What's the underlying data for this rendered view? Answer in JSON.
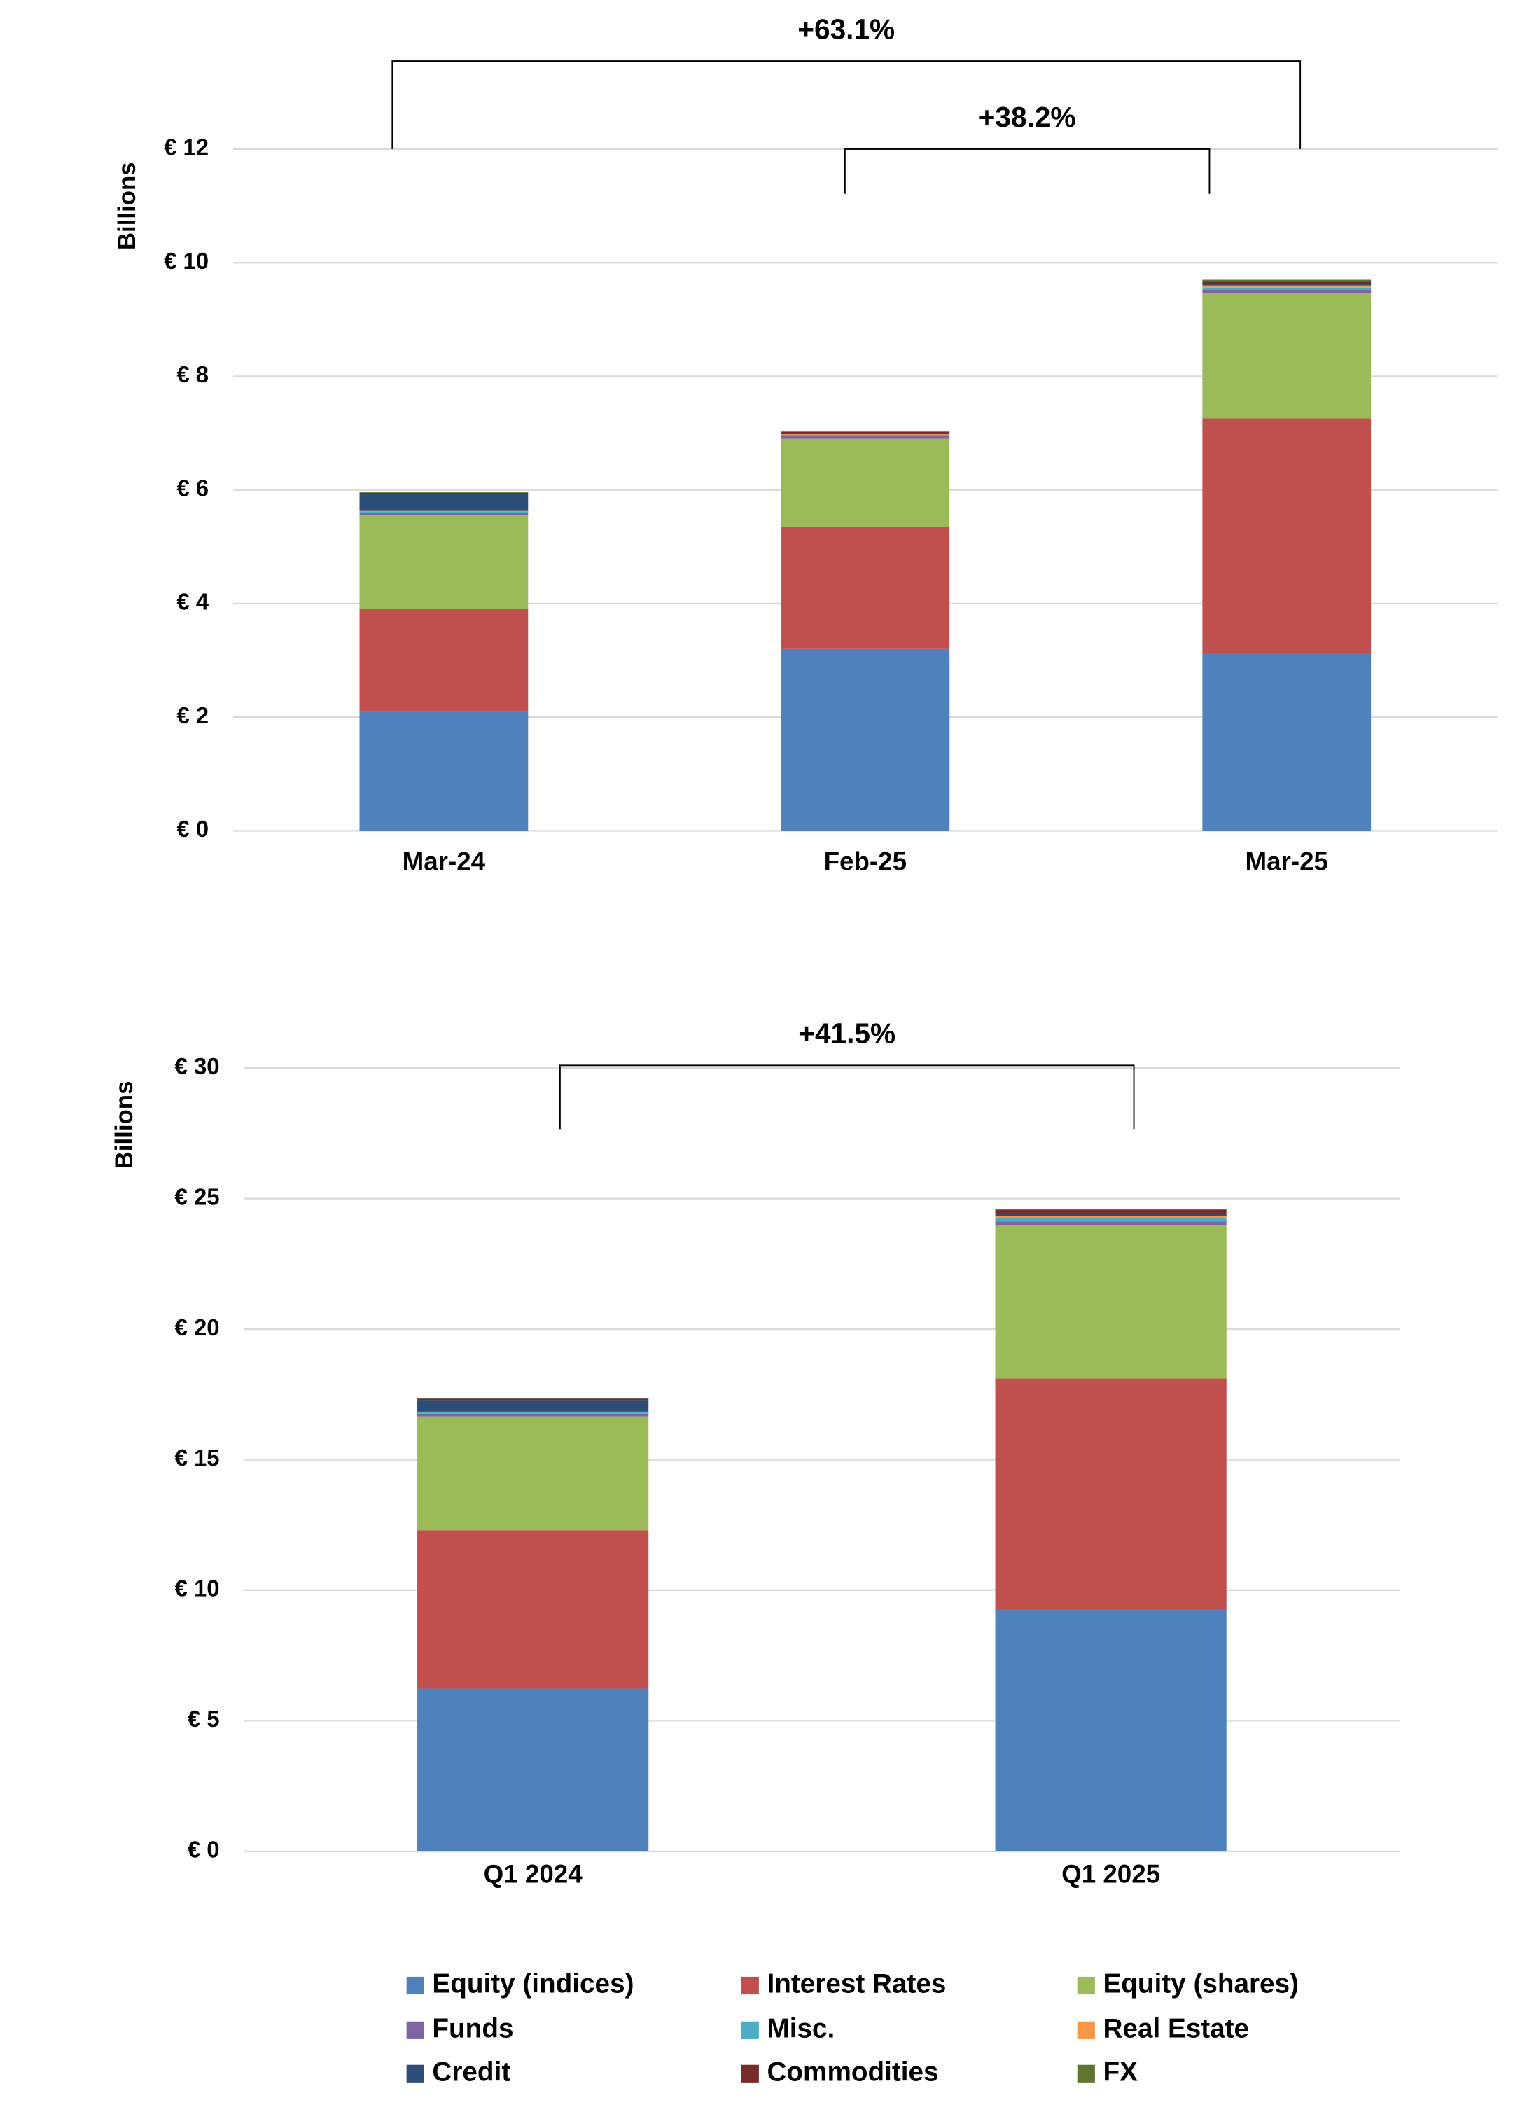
{
  "chart_data": [
    {
      "type": "stacked_bar",
      "y_label": "Billions",
      "categories": [
        "Mar-24",
        "Feb-25",
        "Mar-25"
      ],
      "ylim": [
        0,
        12
      ],
      "yticks": [
        {
          "value": 0,
          "label": "€ 0"
        },
        {
          "value": 2,
          "label": "€ 2"
        },
        {
          "value": 4,
          "label": "€ 4"
        },
        {
          "value": 6,
          "label": "€ 6"
        },
        {
          "value": 8,
          "label": "€ 8"
        },
        {
          "value": 10,
          "label": "€ 10"
        },
        {
          "value": 12,
          "label": "€ 12"
        }
      ],
      "grid": true,
      "annotations": [
        {
          "text": "+63.1%",
          "from": "Mar-24",
          "to": "Mar-25"
        },
        {
          "text": "+38.2%",
          "from": "Feb-25",
          "to": "Mar-25"
        }
      ],
      "series": [
        {
          "name": "Equity (indices)",
          "color": "#4f81bd",
          "values": [
            2.1,
            3.2,
            3.13
          ]
        },
        {
          "name": "Interest Rates",
          "color": "#c0504d",
          "values": [
            1.8,
            2.15,
            4.13
          ]
        },
        {
          "name": "Equity (shares)",
          "color": "#9bbb59",
          "values": [
            1.66,
            1.55,
            2.21
          ]
        },
        {
          "name": "Funds",
          "color": "#8064a2",
          "values": [
            0.04,
            0.05,
            0.06
          ]
        },
        {
          "name": "Misc.",
          "color": "#4bacc6",
          "values": [
            0.02,
            0.02,
            0.03
          ]
        },
        {
          "name": "Real Estate",
          "color": "#f79646",
          "values": [
            0.01,
            0.01,
            0.04
          ]
        },
        {
          "name": "Credit",
          "color": "#2c4d75",
          "values": [
            0.3,
            0.02,
            0.03
          ]
        },
        {
          "name": "Commodities",
          "color": "#772c2a",
          "values": [
            0.02,
            0.02,
            0.05
          ]
        },
        {
          "name": "FX",
          "color": "#5f7530",
          "values": [
            0.01,
            0.01,
            0.02
          ]
        }
      ]
    },
    {
      "type": "stacked_bar",
      "y_label": "Billions",
      "categories": [
        "Q1 2024",
        "Q1 2025"
      ],
      "ylim": [
        0,
        30
      ],
      "yticks": [
        {
          "value": 0,
          "label": "€ 0"
        },
        {
          "value": 5,
          "label": "€ 5"
        },
        {
          "value": 10,
          "label": "€ 10"
        },
        {
          "value": 15,
          "label": "€ 15"
        },
        {
          "value": 20,
          "label": "€ 20"
        },
        {
          "value": 25,
          "label": "€ 25"
        },
        {
          "value": 30,
          "label": "€ 30"
        }
      ],
      "grid": true,
      "annotations": [
        {
          "text": "+41.5%",
          "from": "Q1 2024",
          "to": "Q1 2025"
        }
      ],
      "series": [
        {
          "name": "Equity (indices)",
          "color": "#4f81bd",
          "values": [
            6.23,
            9.29
          ]
        },
        {
          "name": "Interest Rates",
          "color": "#c0504d",
          "values": [
            6.07,
            8.82
          ]
        },
        {
          "name": "Equity (shares)",
          "color": "#9bbb59",
          "values": [
            4.36,
            5.86
          ]
        },
        {
          "name": "Funds",
          "color": "#8064a2",
          "values": [
            0.1,
            0.15
          ]
        },
        {
          "name": "Misc.",
          "color": "#4bacc6",
          "values": [
            0.05,
            0.12
          ]
        },
        {
          "name": "Real Estate",
          "color": "#f79646",
          "values": [
            0.03,
            0.1
          ]
        },
        {
          "name": "Credit",
          "color": "#2c4d75",
          "values": [
            0.45,
            0.1
          ]
        },
        {
          "name": "Commodities",
          "color": "#772c2a",
          "values": [
            0.05,
            0.12
          ]
        },
        {
          "name": "FX",
          "color": "#5f7530",
          "values": [
            0.03,
            0.05
          ]
        }
      ]
    }
  ]
}
